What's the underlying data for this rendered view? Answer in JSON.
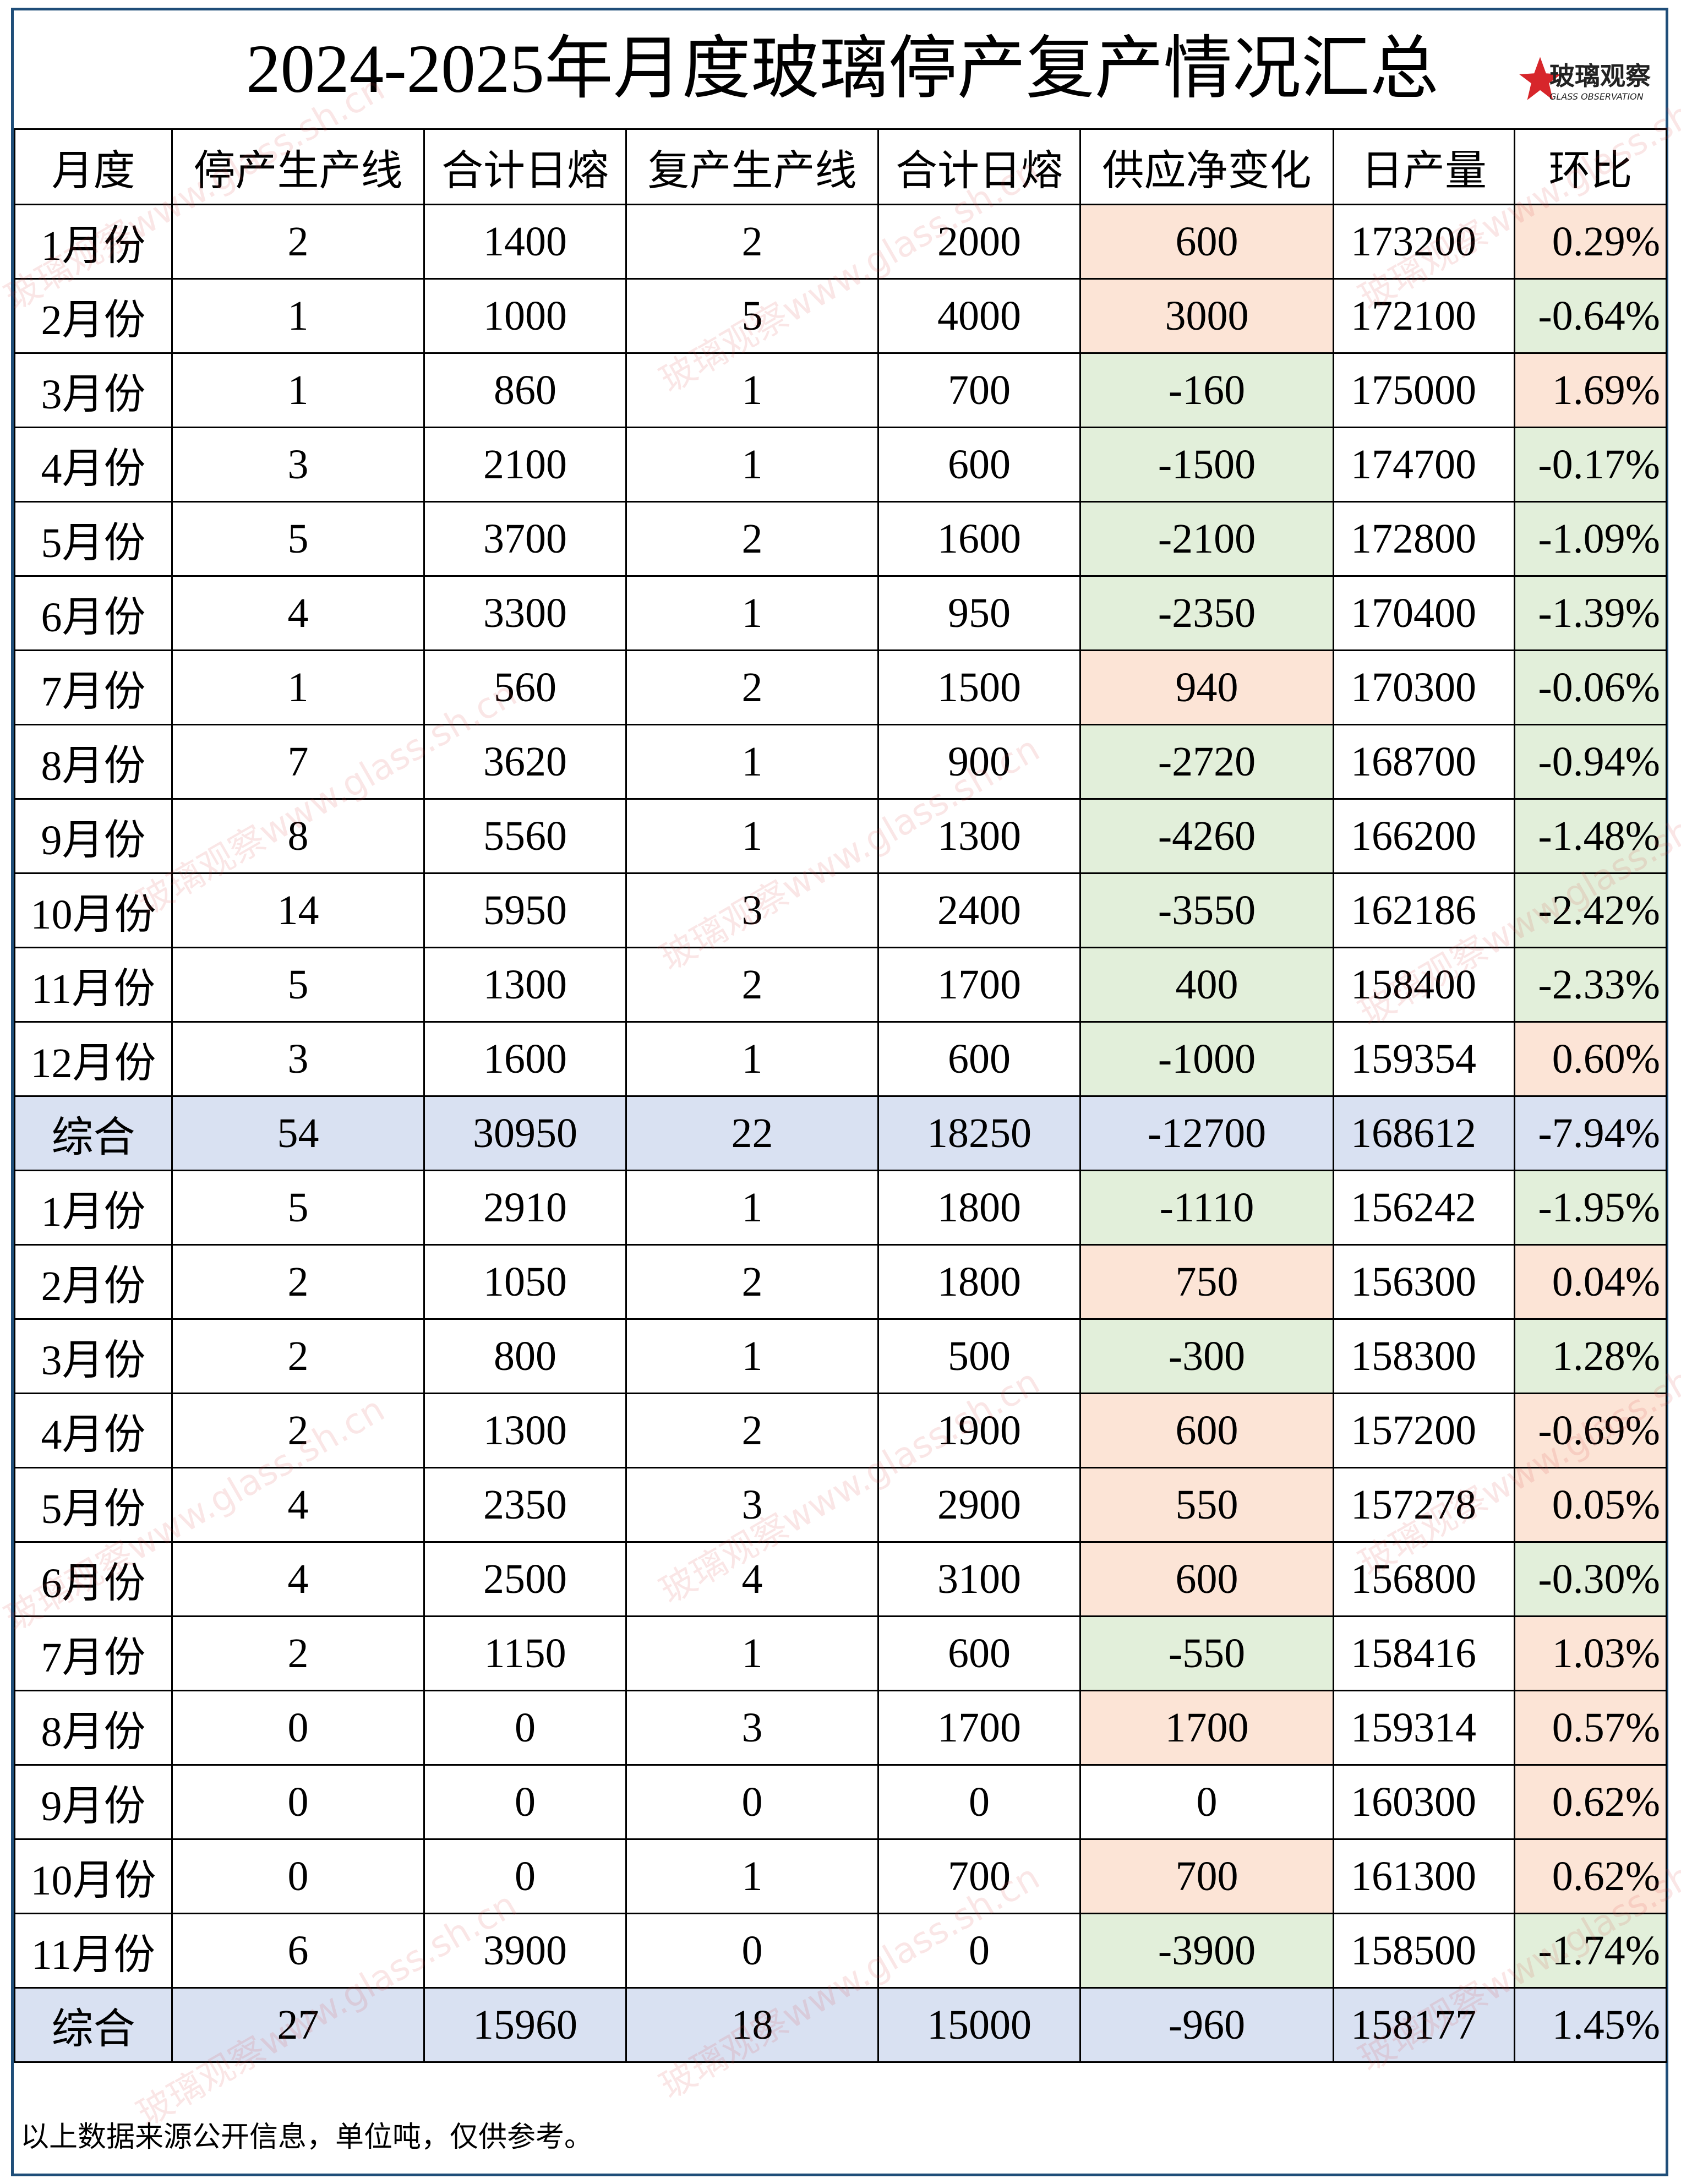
{
  "header": {
    "title": "2024-2025年月度玻璃停产复产情况汇总",
    "logo": {
      "name": "玻璃观察",
      "subtitle": "GLASS OBSERVATION"
    }
  },
  "watermark": "玻璃观察www.glass.sh.cn",
  "table": {
    "columns": [
      "月度",
      "停产生产线",
      "合计日熔",
      "复产生产线",
      "合计日熔",
      "供应净变化",
      "日产量",
      "环比"
    ],
    "rows": [
      {
        "cells": [
          "1月份",
          "2",
          "1400",
          "2",
          "2000",
          "600",
          "173200",
          "0.29%"
        ],
        "change_color": "#fce4d6",
        "mom_color": "#fce4d6"
      },
      {
        "cells": [
          "2月份",
          "1",
          "1000",
          "5",
          "4000",
          "3000",
          "172100",
          "-0.64%"
        ],
        "change_color": "#fce4d6",
        "mom_color": "#e2efda"
      },
      {
        "cells": [
          "3月份",
          "1",
          "860",
          "1",
          "700",
          "-160",
          "175000",
          "1.69%"
        ],
        "change_color": "#e2efda",
        "mom_color": "#fce4d6"
      },
      {
        "cells": [
          "4月份",
          "3",
          "2100",
          "1",
          "600",
          "-1500",
          "174700",
          "-0.17%"
        ],
        "change_color": "#e2efda",
        "mom_color": "#e2efda"
      },
      {
        "cells": [
          "5月份",
          "5",
          "3700",
          "2",
          "1600",
          "-2100",
          "172800",
          "-1.09%"
        ],
        "change_color": "#e2efda",
        "mom_color": "#e2efda"
      },
      {
        "cells": [
          "6月份",
          "4",
          "3300",
          "1",
          "950",
          "-2350",
          "170400",
          "-1.39%"
        ],
        "change_color": "#e2efda",
        "mom_color": "#e2efda"
      },
      {
        "cells": [
          "7月份",
          "1",
          "560",
          "2",
          "1500",
          "940",
          "170300",
          "-0.06%"
        ],
        "change_color": "#fce4d6",
        "mom_color": "#e2efda"
      },
      {
        "cells": [
          "8月份",
          "7",
          "3620",
          "1",
          "900",
          "-2720",
          "168700",
          "-0.94%"
        ],
        "change_color": "#e2efda",
        "mom_color": "#e2efda"
      },
      {
        "cells": [
          "9月份",
          "8",
          "5560",
          "1",
          "1300",
          "-4260",
          "166200",
          "-1.48%"
        ],
        "change_color": "#e2efda",
        "mom_color": "#e2efda"
      },
      {
        "cells": [
          "10月份",
          "14",
          "5950",
          "3",
          "2400",
          "-3550",
          "162186",
          "-2.42%"
        ],
        "change_color": "#e2efda",
        "mom_color": "#e2efda"
      },
      {
        "cells": [
          "11月份",
          "5",
          "1300",
          "2",
          "1700",
          "400",
          "158400",
          "-2.33%"
        ],
        "change_color": "#e2efda",
        "mom_color": "#e2efda"
      },
      {
        "cells": [
          "12月份",
          "3",
          "1600",
          "1",
          "600",
          "-1000",
          "159354",
          "0.60%"
        ],
        "change_color": "#e2efda",
        "mom_color": "#fce4d6"
      },
      {
        "cells": [
          "综合",
          "54",
          "30950",
          "22",
          "18250",
          "-12700",
          "168612",
          "-7.94%"
        ],
        "row_color": "#d9e1f2"
      },
      {
        "cells": [
          "1月份",
          "5",
          "2910",
          "1",
          "1800",
          "-1110",
          "156242",
          "-1.95%"
        ],
        "change_color": "#e2efda",
        "mom_color": "#e2efda"
      },
      {
        "cells": [
          "2月份",
          "2",
          "1050",
          "2",
          "1800",
          "750",
          "156300",
          "0.04%"
        ],
        "change_color": "#fce4d6",
        "mom_color": "#fce4d6"
      },
      {
        "cells": [
          "3月份",
          "2",
          "800",
          "1",
          "500",
          "-300",
          "158300",
          "1.28%"
        ],
        "change_color": "#e2efda",
        "mom_color": "#e2efda"
      },
      {
        "cells": [
          "4月份",
          "2",
          "1300",
          "2",
          "1900",
          "600",
          "157200",
          "-0.69%"
        ],
        "change_color": "#fce4d6",
        "mom_color": "#fce4d6"
      },
      {
        "cells": [
          "5月份",
          "4",
          "2350",
          "3",
          "2900",
          "550",
          "157278",
          "0.05%"
        ],
        "change_color": "#fce4d6",
        "mom_color": "#fce4d6"
      },
      {
        "cells": [
          "6月份",
          "4",
          "2500",
          "4",
          "3100",
          "600",
          "156800",
          "-0.30%"
        ],
        "change_color": "#fce4d6",
        "mom_color": "#e2efda"
      },
      {
        "cells": [
          "7月份",
          "2",
          "1150",
          "1",
          "600",
          "-550",
          "158416",
          "1.03%"
        ],
        "change_color": "#e2efda",
        "mom_color": "#fce4d6"
      },
      {
        "cells": [
          "8月份",
          "0",
          "0",
          "3",
          "1700",
          "1700",
          "159314",
          "0.57%"
        ],
        "change_color": "#fce4d6",
        "mom_color": "#fce4d6"
      },
      {
        "cells": [
          "9月份",
          "0",
          "0",
          "0",
          "0",
          "0",
          "160300",
          "0.62%"
        ],
        "mom_color": "#fce4d6"
      },
      {
        "cells": [
          "10月份",
          "0",
          "0",
          "1",
          "700",
          "700",
          "161300",
          "0.62%"
        ],
        "change_color": "#fce4d6",
        "mom_color": "#fce4d6"
      },
      {
        "cells": [
          "11月份",
          "6",
          "3900",
          "0",
          "0",
          "-3900",
          "158500",
          "-1.74%"
        ],
        "change_color": "#e2efda",
        "mom_color": "#e2efda"
      },
      {
        "cells": [
          "综合",
          "27",
          "15960",
          "18",
          "15000",
          "-960",
          "158177",
          "1.45%"
        ],
        "row_color": "#d9e1f2"
      }
    ]
  },
  "footer": "以上数据来源公开信息，单位吨，仅供参考。"
}
